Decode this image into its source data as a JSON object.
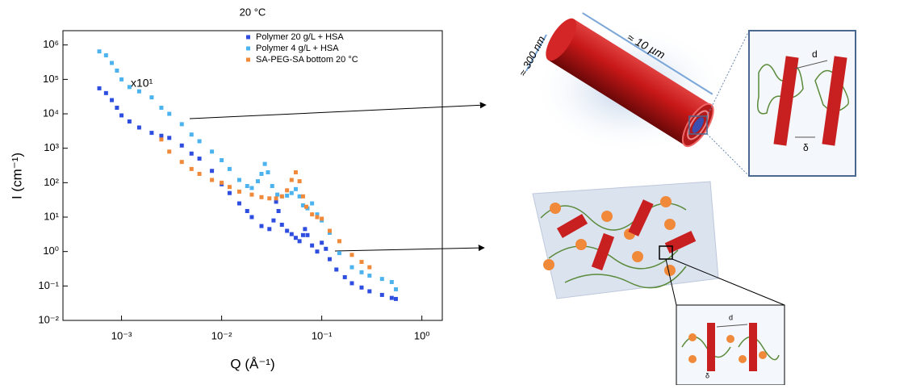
{
  "chart_data": {
    "type": "scatter",
    "title": "20 °C",
    "x_label": "Q (Å⁻¹)",
    "y_label": "I (cm⁻¹)",
    "log_x": true,
    "log_y": true,
    "legend": "upper right",
    "annotation": "x10¹",
    "xlim": [
      0.00026,
      1.6
    ],
    "ylim": [
      0.01,
      2600000
    ],
    "xticks": [
      {
        "value": 0.001,
        "label": "10⁻³"
      },
      {
        "value": 0.01,
        "label": "10⁻²"
      },
      {
        "value": 0.1,
        "label": "10⁻¹"
      },
      {
        "value": 1,
        "label": "10⁰"
      }
    ],
    "yticks": [
      {
        "value": 0.01,
        "label": "10⁻²"
      },
      {
        "value": 0.1,
        "label": "10⁻¹"
      },
      {
        "value": 1,
        "label": "10⁰"
      },
      {
        "value": 10,
        "label": "10¹"
      },
      {
        "value": 100,
        "label": "10²"
      },
      {
        "value": 1000,
        "label": "10³"
      },
      {
        "value": 10000,
        "label": "10⁴"
      },
      {
        "value": 100000,
        "label": "10⁵"
      },
      {
        "value": 1000000,
        "label": "10⁶"
      }
    ],
    "series": [
      {
        "name": "Polymer 20 g/L + HSA",
        "color": "#2e4ee0",
        "x": [
          0.0006,
          0.0007,
          0.0008,
          0.0009,
          0.001,
          0.0012,
          0.0015,
          0.002,
          0.0025,
          0.003,
          0.004,
          0.005,
          0.006,
          0.008,
          0.01,
          0.012,
          0.015,
          0.018,
          0.02,
          0.025,
          0.03,
          0.033,
          0.035,
          0.037,
          0.04,
          0.045,
          0.05,
          0.055,
          0.06,
          0.065,
          0.068,
          0.072,
          0.08,
          0.09,
          0.1,
          0.11,
          0.12,
          0.14,
          0.17,
          0.2,
          0.25,
          0.3,
          0.4,
          0.5,
          0.55
        ],
        "values": [
          55000,
          40000,
          25000,
          15000,
          9000,
          6000,
          4000,
          2800,
          2300,
          2000,
          1200,
          700,
          500,
          220,
          90,
          50,
          25,
          15,
          10,
          5.5,
          4.5,
          8,
          28,
          15,
          6,
          4,
          3.2,
          2.5,
          2,
          3,
          4.5,
          3,
          1.5,
          1,
          1.8,
          1.2,
          0.6,
          0.3,
          0.18,
          0.12,
          0.09,
          0.07,
          0.055,
          0.045,
          0.042
        ]
      },
      {
        "name": "Polymer 4 g/L + HSA",
        "color": "#4db3ee",
        "x": [
          0.0006,
          0.0007,
          0.0008,
          0.0009,
          0.001,
          0.0012,
          0.0015,
          0.002,
          0.0025,
          0.003,
          0.004,
          0.005,
          0.006,
          0.008,
          0.01,
          0.012,
          0.015,
          0.018,
          0.02,
          0.023,
          0.025,
          0.027,
          0.029,
          0.032,
          0.036,
          0.04,
          0.045,
          0.05,
          0.055,
          0.06,
          0.065,
          0.072,
          0.08,
          0.09,
          0.1,
          0.12,
          0.15,
          0.2,
          0.25,
          0.3,
          0.4,
          0.5,
          0.55
        ],
        "values": [
          650000,
          500000,
          300000,
          180000,
          100000,
          60000,
          45000,
          30000,
          15000,
          10000,
          5000,
          2500,
          1600,
          800,
          450,
          250,
          120,
          80,
          70,
          110,
          180,
          350,
          200,
          80,
          45,
          40,
          42,
          50,
          65,
          40,
          22,
          18,
          25,
          12,
          8,
          3.5,
          0.9,
          0.35,
          0.25,
          0.2,
          0.16,
          0.13,
          0.08
        ]
      },
      {
        "name": "SA-PEG-SA bottom 20 °C",
        "color": "#f08a3a",
        "x": [
          0.0025,
          0.003,
          0.004,
          0.005,
          0.006,
          0.008,
          0.01,
          0.012,
          0.015,
          0.02,
          0.025,
          0.03,
          0.035,
          0.04,
          0.045,
          0.05,
          0.055,
          0.06,
          0.065,
          0.07,
          0.08,
          0.09,
          0.1,
          0.12,
          0.15,
          0.2,
          0.25,
          0.3
        ],
        "values": [
          1800,
          800,
          400,
          250,
          180,
          120,
          100,
          75,
          55,
          45,
          38,
          35,
          35,
          40,
          60,
          120,
          200,
          110,
          40,
          20,
          12,
          10,
          9,
          4,
          2,
          0.8,
          0.5,
          0.35
        ]
      }
    ]
  },
  "diagram": {
    "width": "≈ 300 nm",
    "length": "≈ 10 µm",
    "spacing": "d",
    "thickness": "δ",
    "inset_spacing": "d",
    "inset_thickness": "δ"
  }
}
